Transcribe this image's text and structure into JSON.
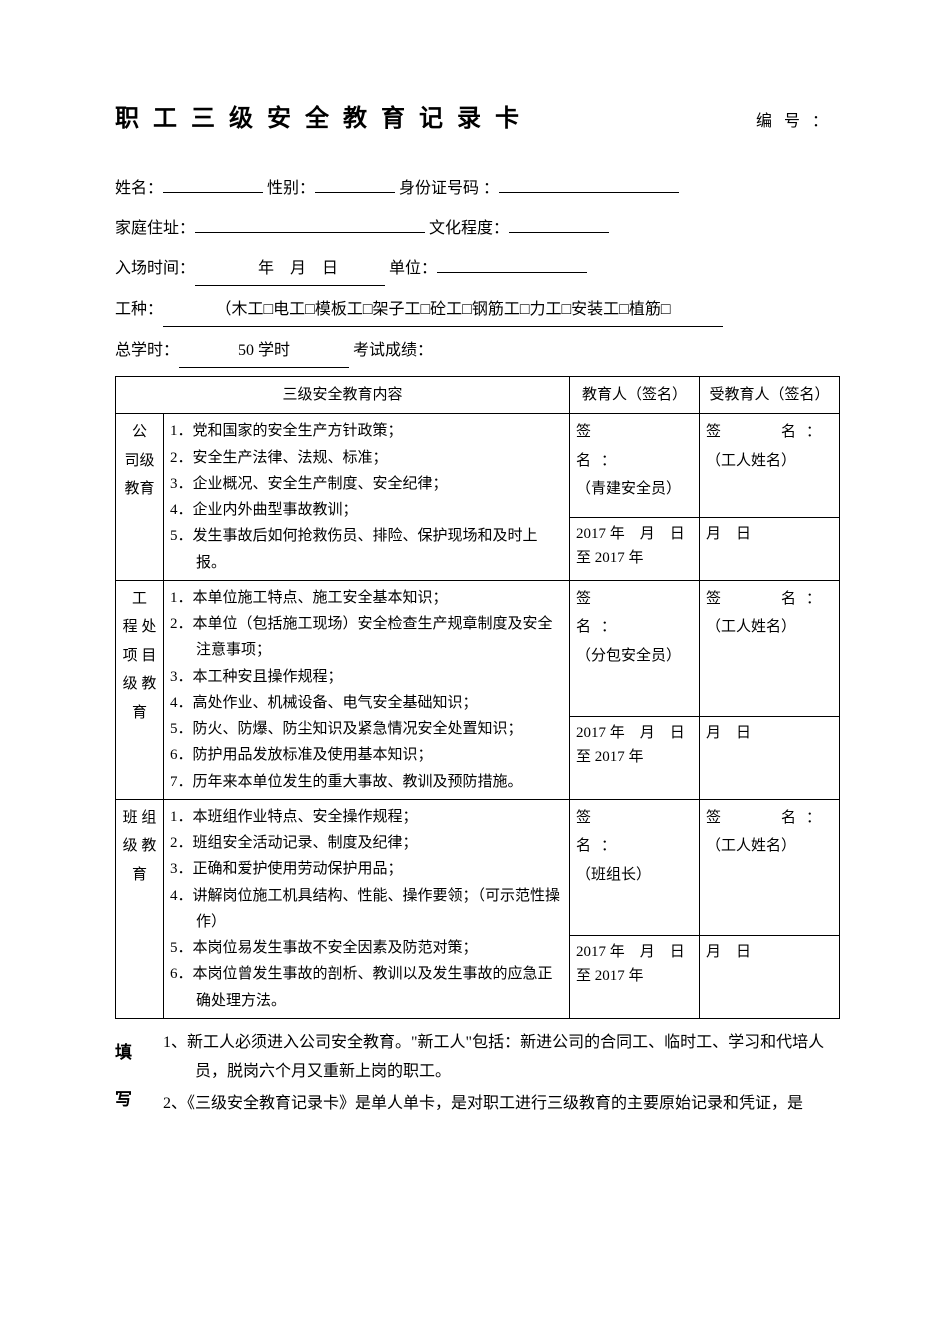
{
  "title": "职工三级安全教育记录卡",
  "serialLabel": "编号：",
  "info": {
    "nameLabel": "姓名：",
    "genderLabel": "性别：",
    "idLabel": "身份证号码 ：",
    "addrLabel": "家庭住址：",
    "eduLabel": "文化程度：",
    "entryLabel": "入场时间：",
    "entryDate": "　年　月　日",
    "unitLabel": "单位：",
    "workLabel": "工种：",
    "workValue": "（木工□电工□模板工□架子工□砼工□钢筋工□力工□安装工□植筋□",
    "hoursLabel": "总学时：",
    "hoursValue": "50 学时",
    "scoreLabel": "考试成绩："
  },
  "tableHeaders": {
    "contentHeader": "三级安全教育内容",
    "sig1": "教育人（签名）",
    "sig2": "受教育人（签名）"
  },
  "sections": [
    {
      "level": "公司级教育",
      "items": [
        "1．党和国家的安全生产方针政策；",
        "2．安全生产法律、法规、标准；",
        "3．企业概况、安全生产制度、安全纪律；",
        "4．企业内外曲型事故教训；",
        "5．发生事故后如何抢救伤员、排险、保护现场和及时上报。"
      ],
      "sigLabel": "签　　名：",
      "sig1hint": "（青建安全员）",
      "sig2hint": "（工人姓名）",
      "dateLeft": "2017 年　月　日 至 2017 年",
      "dateRight": "月　日"
    },
    {
      "level": "工程处项目级教育",
      "items": [
        "1．本单位施工特点、施工安全基本知识；",
        "2．本单位（包括施工现场）安全检查生产规章制度及安全注意事项；",
        "3．本工种安且操作规程；",
        "4．高处作业、机械设备、电气安全基础知识；",
        "5．防火、防爆、防尘知识及紧急情况安全处置知识；",
        "6．防护用品发放标准及使用基本知识；",
        "7．历年来本单位发生的重大事故、教训及预防措施。"
      ],
      "sigLabel": "签　　名：",
      "sig1hint": "（分包安全员）",
      "sig2hint": "（工人姓名）",
      "dateLeft": "2017 年　月　日 至 2017 年",
      "dateRight": "月　日"
    },
    {
      "level": "班组级教育",
      "items": [
        "1．本班组作业特点、安全操作规程；",
        "2．班组安全活动记录、制度及纪律；",
        "3．正确和爱护使用劳动保护用品；",
        "4．讲解岗位施工机具结构、性能、操作要领；（可示范性操作）",
        "5．本岗位易发生事故不安全因素及防范对策；",
        "6．本岗位曾发生事故的剖析、教训以及发生事故的应急正确处理方法。"
      ],
      "sigLabel": "签　　名：",
      "sig1hint": "（班组长）",
      "sig2hint": "（工人姓名）",
      "dateLeft": "2017 年　月　日 至 2017 年",
      "dateRight": "月　日"
    }
  ],
  "footLabel1": "填",
  "footLabel2": "写",
  "footnotes": [
    "1、新工人必须进入公司安全教育。\"新工人\"包括：新进公司的合同工、临时工、学习和代培人员，脱岗六个月又重新上岗的职工。",
    "2、《三级安全教育记录卡》是单人单卡，是对职工进行三级教育的主要原始记录和凭证，是"
  ]
}
